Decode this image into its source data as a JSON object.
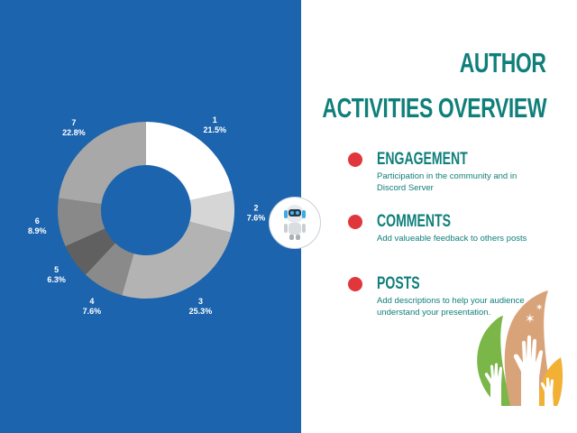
{
  "title_line1": "AUTHOR",
  "title_line2": "ACTIVITIES OVERVIEW",
  "items": [
    {
      "heading": "ENGAGEMENT",
      "description": "Participation in the community and in Discord Server"
    },
    {
      "heading": "COMMENTS",
      "description": "Add valueable feedback to others posts"
    },
    {
      "heading": "POSTS",
      "description": "Add descriptions to help your audience understand your presentation."
    }
  ],
  "colors": {
    "background_left": "#1c64ad",
    "accent": "#0f7f7a",
    "bullet": "#e0373c"
  },
  "chart_data": {
    "type": "pie",
    "style": "donut",
    "title": "",
    "slices": [
      {
        "label": "1",
        "value": 21.5,
        "display": "21.5%",
        "color": "#ffffff"
      },
      {
        "label": "2",
        "value": 7.6,
        "display": "7.6%",
        "color": "#d6d6d6"
      },
      {
        "label": "3",
        "value": 25.3,
        "display": "25.3%",
        "color": "#b3b3b3"
      },
      {
        "label": "4",
        "value": 7.6,
        "display": "7.6%",
        "color": "#8a8a8a"
      },
      {
        "label": "5",
        "value": 6.3,
        "display": "6.3%",
        "color": "#606060"
      },
      {
        "label": "6",
        "value": 8.9,
        "display": "8.9%",
        "color": "#898989"
      },
      {
        "label": "7",
        "value": 22.8,
        "display": "22.8%",
        "color": "#a8a8a8"
      }
    ],
    "legend": false
  }
}
